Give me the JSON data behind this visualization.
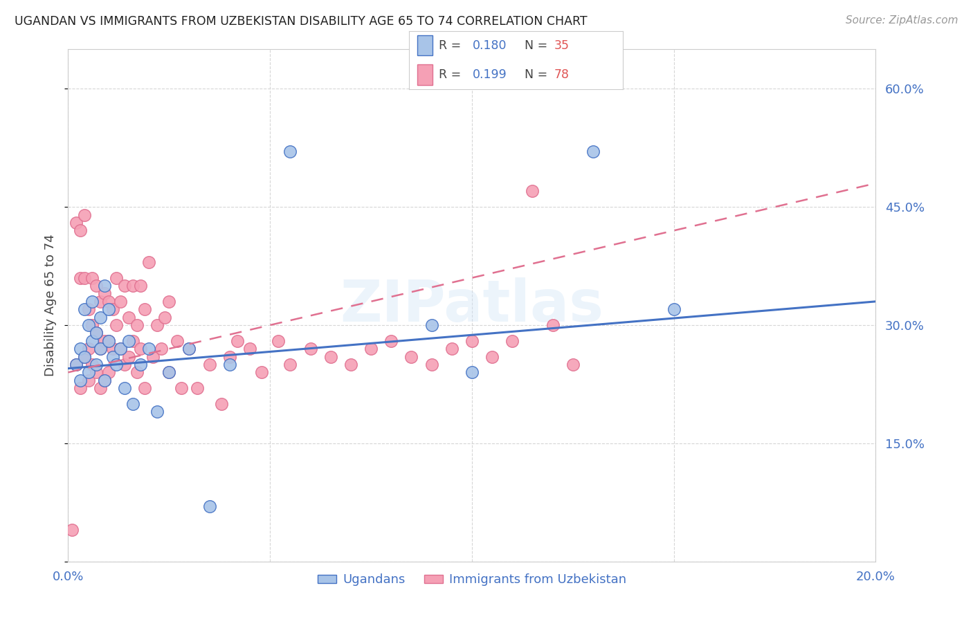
{
  "title": "UGANDAN VS IMMIGRANTS FROM UZBEKISTAN DISABILITY AGE 65 TO 74 CORRELATION CHART",
  "source": "Source: ZipAtlas.com",
  "ylabel": "Disability Age 65 to 74",
  "xlim": [
    0.0,
    0.2
  ],
  "ylim": [
    0.0,
    0.65
  ],
  "xticks": [
    0.0,
    0.05,
    0.1,
    0.15,
    0.2
  ],
  "xticklabels": [
    "0.0%",
    "",
    "",
    "",
    "20.0%"
  ],
  "yticks": [
    0.0,
    0.15,
    0.3,
    0.45,
    0.6
  ],
  "yticklabels": [
    "",
    "15.0%",
    "30.0%",
    "45.0%",
    "60.0%"
  ],
  "ugandan_color": "#a8c4e8",
  "uzbekistan_color": "#f5a0b5",
  "ugandan_R": 0.18,
  "ugandan_N": 35,
  "uzbekistan_R": 0.199,
  "uzbekistan_N": 78,
  "trend_ugandan_color": "#4472c4",
  "trend_uzbekistan_color": "#e07090",
  "watermark": "ZIPatlas",
  "ugandan_x": [
    0.002,
    0.003,
    0.003,
    0.004,
    0.004,
    0.005,
    0.005,
    0.006,
    0.006,
    0.007,
    0.007,
    0.008,
    0.008,
    0.009,
    0.009,
    0.01,
    0.01,
    0.011,
    0.012,
    0.013,
    0.014,
    0.015,
    0.016,
    0.018,
    0.02,
    0.022,
    0.025,
    0.03,
    0.035,
    0.04,
    0.055,
    0.09,
    0.1,
    0.13,
    0.15
  ],
  "ugandan_y": [
    0.25,
    0.27,
    0.23,
    0.32,
    0.26,
    0.3,
    0.24,
    0.28,
    0.33,
    0.29,
    0.25,
    0.31,
    0.27,
    0.35,
    0.23,
    0.32,
    0.28,
    0.26,
    0.25,
    0.27,
    0.22,
    0.28,
    0.2,
    0.25,
    0.27,
    0.19,
    0.24,
    0.27,
    0.07,
    0.25,
    0.52,
    0.3,
    0.24,
    0.52,
    0.32
  ],
  "uzbekistan_x": [
    0.001,
    0.002,
    0.002,
    0.003,
    0.003,
    0.003,
    0.004,
    0.004,
    0.004,
    0.005,
    0.005,
    0.005,
    0.006,
    0.006,
    0.006,
    0.007,
    0.007,
    0.007,
    0.008,
    0.008,
    0.008,
    0.009,
    0.009,
    0.009,
    0.01,
    0.01,
    0.01,
    0.011,
    0.011,
    0.012,
    0.012,
    0.013,
    0.013,
    0.014,
    0.014,
    0.015,
    0.015,
    0.016,
    0.016,
    0.017,
    0.017,
    0.018,
    0.018,
    0.019,
    0.019,
    0.02,
    0.021,
    0.022,
    0.023,
    0.024,
    0.025,
    0.025,
    0.027,
    0.028,
    0.03,
    0.032,
    0.035,
    0.038,
    0.04,
    0.042,
    0.045,
    0.048,
    0.052,
    0.055,
    0.06,
    0.065,
    0.07,
    0.075,
    0.08,
    0.085,
    0.09,
    0.095,
    0.1,
    0.105,
    0.11,
    0.115,
    0.12,
    0.125
  ],
  "uzbekistan_y": [
    0.04,
    0.25,
    0.43,
    0.42,
    0.36,
    0.22,
    0.44,
    0.36,
    0.26,
    0.32,
    0.27,
    0.23,
    0.36,
    0.3,
    0.25,
    0.35,
    0.29,
    0.24,
    0.33,
    0.27,
    0.22,
    0.34,
    0.28,
    0.23,
    0.33,
    0.28,
    0.24,
    0.32,
    0.27,
    0.36,
    0.3,
    0.33,
    0.27,
    0.35,
    0.25,
    0.31,
    0.26,
    0.35,
    0.28,
    0.3,
    0.24,
    0.35,
    0.27,
    0.32,
    0.22,
    0.38,
    0.26,
    0.3,
    0.27,
    0.31,
    0.33,
    0.24,
    0.28,
    0.22,
    0.27,
    0.22,
    0.25,
    0.2,
    0.26,
    0.28,
    0.27,
    0.24,
    0.28,
    0.25,
    0.27,
    0.26,
    0.25,
    0.27,
    0.28,
    0.26,
    0.25,
    0.27,
    0.28,
    0.26,
    0.28,
    0.47,
    0.3,
    0.25
  ]
}
